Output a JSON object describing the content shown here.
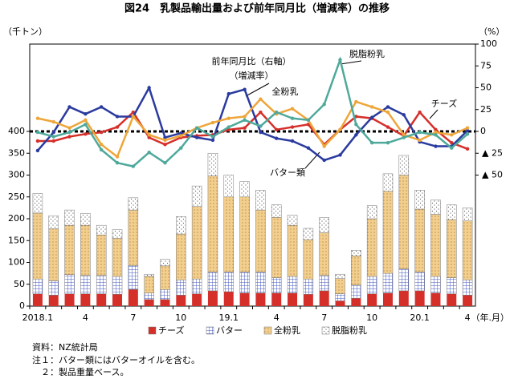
{
  "chart_data": {
    "type": "combo",
    "title": "図24　乳製品輸出量および前年同月比（増減率）の推移",
    "y_label": "（千トン）",
    "y2_label": "（%）",
    "x_label": "（年.月）",
    "annotations": [
      "前年同月比（右軸）",
      "（増減率）"
    ],
    "notes": [
      "資料：NZ統計局",
      "注１：バター類にはバターオイルを含む。",
      "　２：製品重量ベース。"
    ],
    "categories": [
      "2018.1",
      null,
      null,
      "4",
      null,
      null,
      "7",
      null,
      null,
      "10",
      null,
      null,
      "19.1",
      null,
      null,
      "4",
      null,
      null,
      "7",
      null,
      null,
      "10",
      null,
      null,
      "20.1",
      null,
      null,
      "4"
    ],
    "ylim": [
      0,
      600
    ],
    "yticks": [
      0,
      50,
      100,
      150,
      200,
      250,
      300,
      350,
      400
    ],
    "y2lim": [
      -200,
      100
    ],
    "y2ticks": [
      100,
      75,
      50,
      25,
      0,
      {
        "value": -25,
        "label": "▲ 25"
      },
      {
        "value": -50,
        "label": "▲ 50"
      }
    ],
    "series": [
      {
        "name": "チーズ",
        "type": "bar",
        "color": "#d52f2a",
        "values": [
          28,
          25,
          28,
          28,
          28,
          27,
          38,
          15,
          15,
          25,
          28,
          35,
          33,
          30,
          30,
          30,
          30,
          27,
          35,
          12,
          18,
          28,
          30,
          35,
          35,
          30,
          28,
          25
        ]
      },
      {
        "name": "バター",
        "type": "bar",
        "color": "#4458c0",
        "values": [
          34,
          33,
          44,
          42,
          42,
          41,
          55,
          15,
          23,
          35,
          34,
          43,
          45,
          48,
          48,
          35,
          38,
          35,
          35,
          16,
          30,
          40,
          45,
          50,
          43,
          38,
          37,
          35
        ]
      },
      {
        "name": "全粉乳",
        "type": "bar",
        "color": "#f3cf8e",
        "values": [
          151,
          119,
          113,
          115,
          93,
          87,
          127,
          38,
          54,
          105,
          166,
          220,
          172,
          172,
          142,
          138,
          117,
          90,
          98,
          35,
          67,
          132,
          188,
          215,
          144,
          142,
          133,
          135
        ]
      },
      {
        "name": "脱脂粉乳",
        "type": "bar",
        "color": "#ffffff",
        "values": [
          45,
          30,
          35,
          27,
          22,
          20,
          28,
          5,
          15,
          40,
          47,
          52,
          50,
          35,
          45,
          29,
          23,
          26,
          35,
          10,
          13,
          30,
          40,
          45,
          43,
          33,
          34,
          30
        ]
      },
      {
        "name": "チーズ",
        "type": "line",
        "axis": "y2",
        "color": "#d52f2a",
        "values": [
          -11,
          -11,
          -6,
          -3,
          -1,
          5,
          22,
          -7,
          -15,
          -7,
          -5,
          -4,
          2,
          4,
          22,
          2,
          5,
          8,
          -15,
          2,
          17,
          15,
          5,
          -5,
          22,
          2,
          -13,
          -20
        ]
      },
      {
        "name": "バター類",
        "type": "line",
        "axis": "y2",
        "color": "#2a3a9e",
        "values": [
          -22,
          -1,
          28,
          20,
          28,
          17,
          17,
          50,
          -7,
          -2,
          -7,
          -10,
          43,
          48,
          -1,
          -8,
          -11,
          -19,
          -33,
          -27,
          -4,
          16,
          28,
          19,
          -12,
          -17,
          -17,
          1
        ]
      },
      {
        "name": "全粉乳",
        "type": "line",
        "axis": "y2",
        "color": "#eea63a",
        "values": [
          15,
          11,
          4,
          13,
          -15,
          -29,
          17,
          -4,
          -10,
          -5,
          4,
          10,
          15,
          17,
          37,
          20,
          26,
          13,
          -17,
          2,
          34,
          28,
          22,
          -4,
          -10,
          -1,
          -4,
          4
        ]
      },
      {
        "name": "脱脂粉乳",
        "type": "line",
        "axis": "y2",
        "color": "#4ea99b",
        "values": [
          -1,
          -6,
          -1,
          8,
          -21,
          -36,
          -40,
          -24,
          -36,
          -19,
          4,
          -6,
          5,
          13,
          6,
          22,
          15,
          13,
          31,
          82,
          8,
          -13,
          -13,
          -7,
          -1,
          -4,
          -19,
          -3
        ]
      }
    ]
  }
}
